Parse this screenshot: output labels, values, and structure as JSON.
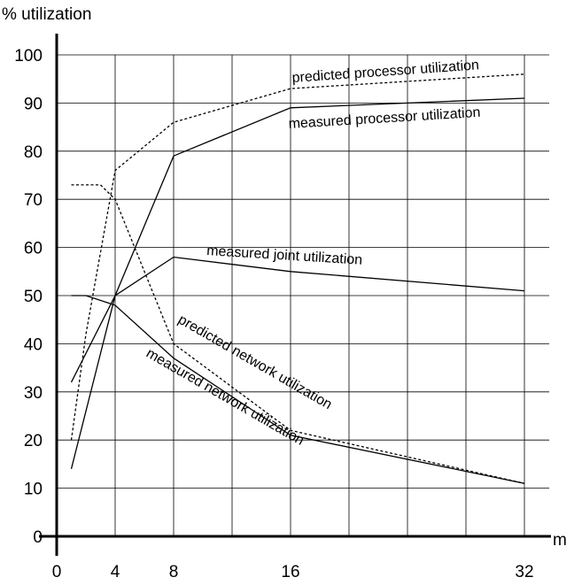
{
  "chart_data": {
    "type": "line",
    "title": "",
    "ylabel": "% utilization",
    "xlabel": "m",
    "x_ticks": [
      0,
      4,
      8,
      16,
      32
    ],
    "y_ticks": [
      0,
      10,
      20,
      30,
      40,
      50,
      60,
      70,
      80,
      90,
      100
    ],
    "xlim": [
      0,
      32
    ],
    "ylim": [
      0,
      100
    ],
    "grid": true,
    "series": [
      {
        "name": "predicted processor utilization",
        "style": "dotted",
        "x": [
          1,
          2,
          4,
          8,
          16,
          32
        ],
        "y": [
          20,
          42,
          76,
          86,
          93,
          96
        ]
      },
      {
        "name": "measured processor utilization",
        "style": "solid",
        "x": [
          1,
          4,
          8,
          16,
          32
        ],
        "y": [
          14,
          50,
          79,
          89,
          91
        ]
      },
      {
        "name": "measured joint utilization",
        "style": "solid",
        "x": [
          1,
          4,
          8,
          16,
          32
        ],
        "y": [
          32,
          50,
          58,
          55,
          51
        ]
      },
      {
        "name": "predicted network utilization",
        "style": "dotted",
        "x": [
          1,
          3,
          4,
          8,
          16,
          32
        ],
        "y": [
          73,
          73,
          70,
          40,
          22,
          11
        ]
      },
      {
        "name": "measured network utilization",
        "style": "solid",
        "x": [
          1,
          2,
          4,
          8,
          16,
          32
        ],
        "y": [
          50,
          50,
          48,
          37,
          21,
          11
        ]
      }
    ]
  }
}
